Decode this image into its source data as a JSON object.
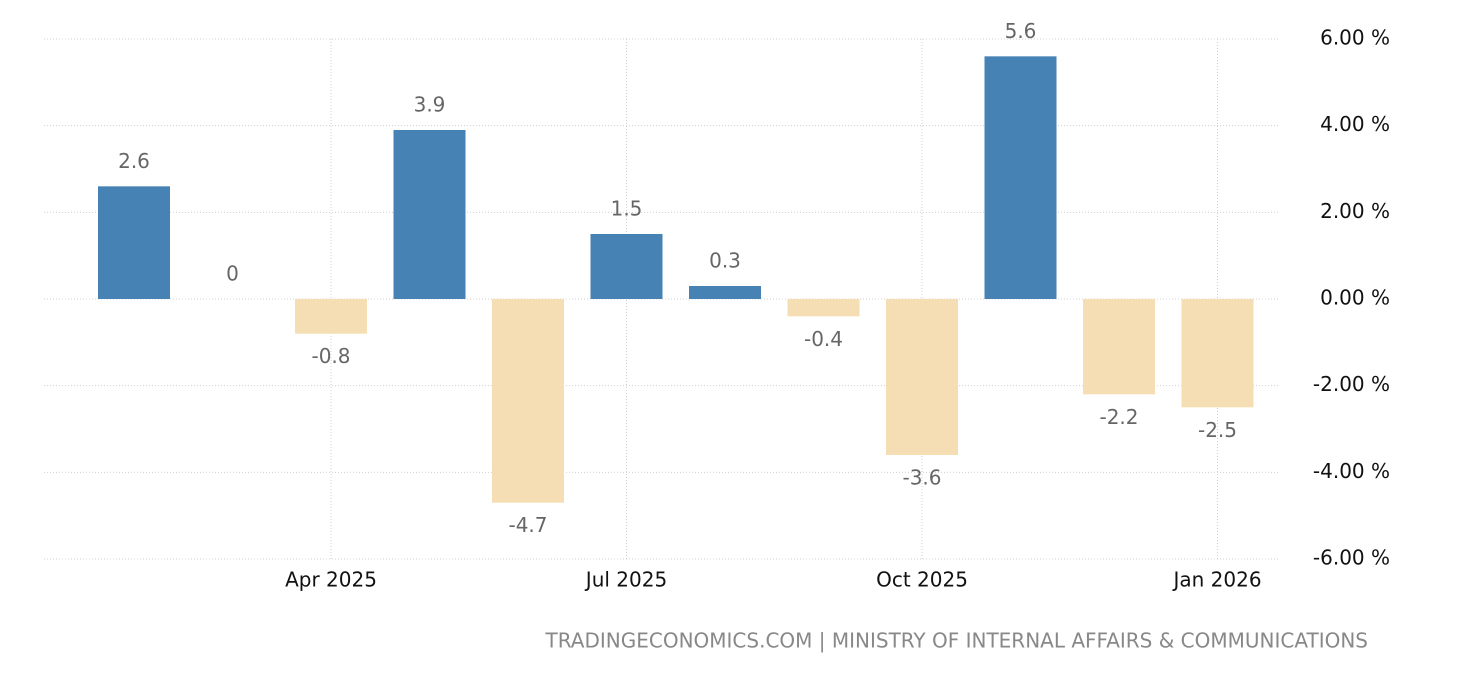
{
  "chart_data": {
    "type": "bar",
    "categories": [
      null,
      null,
      "Apr 2025",
      null,
      null,
      "Jul 2025",
      null,
      null,
      "Oct 2025",
      null,
      null,
      "Jan 2026"
    ],
    "values": [
      2.6,
      0,
      -0.8,
      3.9,
      -4.7,
      1.5,
      0.3,
      -0.4,
      -3.6,
      5.6,
      -2.2,
      -2.5
    ],
    "positive_color": "#4682b4",
    "negative_color": "#f5deb3",
    "ylim": [
      -6,
      6
    ],
    "yticks": [
      {
        "value": 6,
        "label": "6.00 %"
      },
      {
        "value": 4,
        "label": "4.00 %"
      },
      {
        "value": 2,
        "label": "2.00 %"
      },
      {
        "value": 0,
        "label": "0.00 %"
      },
      {
        "value": -2,
        "label": "-2.00 %"
      },
      {
        "value": -4,
        "label": "-4.00 %"
      },
      {
        "value": -6,
        "label": "-6.00 %"
      }
    ],
    "grid": true,
    "source": "TRADINGECONOMICS.COM | MINISTRY OF INTERNAL AFFAIRS & COMMUNICATIONS"
  }
}
